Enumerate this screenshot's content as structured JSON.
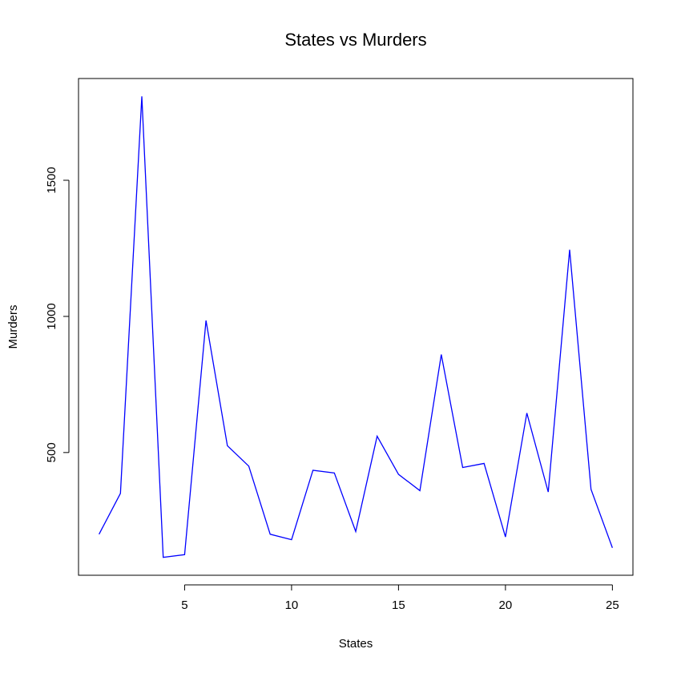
{
  "chart_data": {
    "type": "line",
    "title": "States vs Murders",
    "xlabel": "States",
    "ylabel": "Murders",
    "x": [
      1,
      2,
      3,
      4,
      5,
      6,
      7,
      8,
      9,
      10,
      11,
      12,
      13,
      14,
      15,
      16,
      17,
      18,
      19,
      20,
      21,
      22,
      23,
      24,
      25
    ],
    "series": [
      {
        "values": [
          200,
          350,
          1808,
          115,
          125,
          985,
          525,
          450,
          200,
          180,
          435,
          425,
          210,
          560,
          420,
          360,
          860,
          445,
          460,
          190,
          645,
          355,
          1245,
          365,
          150
        ],
        "color": "#0000ff"
      }
    ],
    "xlim": [
      0.04,
      25.96
    ],
    "ylim": [
      49.3,
      1873.7
    ],
    "xticks": [
      5,
      10,
      15,
      20,
      25
    ],
    "yticks": [
      500,
      1000,
      1500
    ],
    "grid": false,
    "legend": "none"
  }
}
